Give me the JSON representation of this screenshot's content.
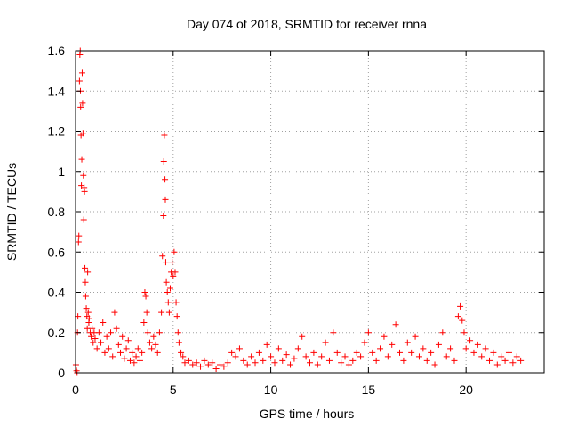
{
  "chart_data": {
    "type": "scatter",
    "title": "Day 074 of 2018, SRMTID for receiver rnna",
    "xlabel": "GPS time / hours",
    "ylabel": "SRMTID / TECUs",
    "xlim": [
      0,
      24
    ],
    "ylim": [
      0,
      1.6
    ],
    "x_ticks": [
      0,
      5,
      10,
      15,
      20
    ],
    "x_tick_labels": [
      "0",
      "5",
      "10",
      "15",
      "20"
    ],
    "y_ticks": [
      0,
      0.2,
      0.4,
      0.6,
      0.8,
      1.0,
      1.2,
      1.4,
      1.6
    ],
    "y_tick_labels": [
      "0",
      "0.2",
      "0.4",
      "0.6",
      "0.8",
      "1",
      "1.2",
      "1.4",
      "1.6"
    ],
    "grid": true,
    "marker": "+",
    "color": "#ff0000",
    "series": [
      {
        "name": "SRMTID",
        "points": [
          [
            0.02,
            0.04
          ],
          [
            0.05,
            0.01
          ],
          [
            0.08,
            0.0
          ],
          [
            0.1,
            0.2
          ],
          [
            0.12,
            0.28
          ],
          [
            0.15,
            0.65
          ],
          [
            0.17,
            0.68
          ],
          [
            0.2,
            1.45
          ],
          [
            0.22,
            1.58
          ],
          [
            0.24,
            1.6
          ],
          [
            0.25,
            1.4
          ],
          [
            0.26,
            1.32
          ],
          [
            0.28,
            1.18
          ],
          [
            0.3,
            0.93
          ],
          [
            0.32,
            1.06
          ],
          [
            0.34,
            1.49
          ],
          [
            0.36,
            1.34
          ],
          [
            0.38,
            1.19
          ],
          [
            0.4,
            0.98
          ],
          [
            0.42,
            0.76
          ],
          [
            0.44,
            0.92
          ],
          [
            0.46,
            0.9
          ],
          [
            0.48,
            0.52
          ],
          [
            0.5,
            0.45
          ],
          [
            0.52,
            0.38
          ],
          [
            0.55,
            0.32
          ],
          [
            0.58,
            0.28
          ],
          [
            0.6,
            0.22
          ],
          [
            0.62,
            0.5
          ],
          [
            0.65,
            0.3
          ],
          [
            0.68,
            0.25
          ],
          [
            0.7,
            0.27
          ],
          [
            0.75,
            0.2
          ],
          [
            0.8,
            0.18
          ],
          [
            0.85,
            0.22
          ],
          [
            0.9,
            0.15
          ],
          [
            0.95,
            0.2
          ],
          [
            1.0,
            0.17
          ],
          [
            1.1,
            0.12
          ],
          [
            1.2,
            0.2
          ],
          [
            1.3,
            0.15
          ],
          [
            1.4,
            0.25
          ],
          [
            1.5,
            0.1
          ],
          [
            1.6,
            0.18
          ],
          [
            1.7,
            0.12
          ],
          [
            1.8,
            0.2
          ],
          [
            1.9,
            0.08
          ],
          [
            2.0,
            0.3
          ],
          [
            2.1,
            0.22
          ],
          [
            2.2,
            0.14
          ],
          [
            2.3,
            0.1
          ],
          [
            2.4,
            0.18
          ],
          [
            2.5,
            0.07
          ],
          [
            2.6,
            0.12
          ],
          [
            2.7,
            0.16
          ],
          [
            2.8,
            0.06
          ],
          [
            2.9,
            0.1
          ],
          [
            3.0,
            0.05
          ],
          [
            3.1,
            0.08
          ],
          [
            3.2,
            0.12
          ],
          [
            3.3,
            0.06
          ],
          [
            3.4,
            0.1
          ],
          [
            3.5,
            0.25
          ],
          [
            3.55,
            0.4
          ],
          [
            3.6,
            0.38
          ],
          [
            3.65,
            0.3
          ],
          [
            3.7,
            0.2
          ],
          [
            3.8,
            0.15
          ],
          [
            3.9,
            0.12
          ],
          [
            4.0,
            0.18
          ],
          [
            4.1,
            0.14
          ],
          [
            4.2,
            0.1
          ],
          [
            4.3,
            0.2
          ],
          [
            4.4,
            0.3
          ],
          [
            4.45,
            0.58
          ],
          [
            4.5,
            0.78
          ],
          [
            4.52,
            1.05
          ],
          [
            4.55,
            1.18
          ],
          [
            4.58,
            0.96
          ],
          [
            4.6,
            0.86
          ],
          [
            4.62,
            0.55
          ],
          [
            4.65,
            0.45
          ],
          [
            4.7,
            0.4
          ],
          [
            4.75,
            0.35
          ],
          [
            4.8,
            0.3
          ],
          [
            4.85,
            0.42
          ],
          [
            4.9,
            0.5
          ],
          [
            4.95,
            0.55
          ],
          [
            5.0,
            0.48
          ],
          [
            5.05,
            0.6
          ],
          [
            5.1,
            0.5
          ],
          [
            5.15,
            0.35
          ],
          [
            5.2,
            0.28
          ],
          [
            5.25,
            0.2
          ],
          [
            5.3,
            0.15
          ],
          [
            5.4,
            0.1
          ],
          [
            5.5,
            0.08
          ],
          [
            5.6,
            0.05
          ],
          [
            5.8,
            0.06
          ],
          [
            6.0,
            0.04
          ],
          [
            6.2,
            0.05
          ],
          [
            6.4,
            0.03
          ],
          [
            6.6,
            0.06
          ],
          [
            6.8,
            0.04
          ],
          [
            7.0,
            0.05
          ],
          [
            7.2,
            0.02
          ],
          [
            7.4,
            0.04
          ],
          [
            7.6,
            0.03
          ],
          [
            7.8,
            0.05
          ],
          [
            8.0,
            0.1
          ],
          [
            8.2,
            0.08
          ],
          [
            8.4,
            0.12
          ],
          [
            8.6,
            0.06
          ],
          [
            8.8,
            0.04
          ],
          [
            9.0,
            0.08
          ],
          [
            9.2,
            0.05
          ],
          [
            9.4,
            0.1
          ],
          [
            9.6,
            0.06
          ],
          [
            9.8,
            0.14
          ],
          [
            10.0,
            0.08
          ],
          [
            10.2,
            0.05
          ],
          [
            10.4,
            0.12
          ],
          [
            10.6,
            0.06
          ],
          [
            10.8,
            0.09
          ],
          [
            11.0,
            0.04
          ],
          [
            11.2,
            0.07
          ],
          [
            11.4,
            0.12
          ],
          [
            11.6,
            0.18
          ],
          [
            11.8,
            0.08
          ],
          [
            12.0,
            0.05
          ],
          [
            12.2,
            0.1
          ],
          [
            12.4,
            0.04
          ],
          [
            12.6,
            0.08
          ],
          [
            12.8,
            0.15
          ],
          [
            13.0,
            0.06
          ],
          [
            13.2,
            0.2
          ],
          [
            13.4,
            0.1
          ],
          [
            13.6,
            0.05
          ],
          [
            13.8,
            0.08
          ],
          [
            14.0,
            0.04
          ],
          [
            14.2,
            0.06
          ],
          [
            14.4,
            0.1
          ],
          [
            14.6,
            0.08
          ],
          [
            14.8,
            0.15
          ],
          [
            15.0,
            0.2
          ],
          [
            15.2,
            0.1
          ],
          [
            15.4,
            0.06
          ],
          [
            15.6,
            0.12
          ],
          [
            15.8,
            0.18
          ],
          [
            16.0,
            0.08
          ],
          [
            16.2,
            0.14
          ],
          [
            16.4,
            0.24
          ],
          [
            16.6,
            0.1
          ],
          [
            16.8,
            0.06
          ],
          [
            17.0,
            0.15
          ],
          [
            17.2,
            0.1
          ],
          [
            17.4,
            0.18
          ],
          [
            17.6,
            0.08
          ],
          [
            17.8,
            0.12
          ],
          [
            18.0,
            0.06
          ],
          [
            18.2,
            0.1
          ],
          [
            18.4,
            0.04
          ],
          [
            18.6,
            0.14
          ],
          [
            18.8,
            0.2
          ],
          [
            19.0,
            0.08
          ],
          [
            19.2,
            0.12
          ],
          [
            19.4,
            0.06
          ],
          [
            19.6,
            0.28
          ],
          [
            19.7,
            0.33
          ],
          [
            19.8,
            0.26
          ],
          [
            19.9,
            0.2
          ],
          [
            20.0,
            0.12
          ],
          [
            20.2,
            0.16
          ],
          [
            20.4,
            0.1
          ],
          [
            20.6,
            0.14
          ],
          [
            20.8,
            0.08
          ],
          [
            21.0,
            0.12
          ],
          [
            21.2,
            0.06
          ],
          [
            21.4,
            0.1
          ],
          [
            21.6,
            0.04
          ],
          [
            21.8,
            0.08
          ],
          [
            22.0,
            0.06
          ],
          [
            22.2,
            0.1
          ],
          [
            22.4,
            0.05
          ],
          [
            22.6,
            0.08
          ],
          [
            22.8,
            0.06
          ]
        ]
      }
    ]
  }
}
